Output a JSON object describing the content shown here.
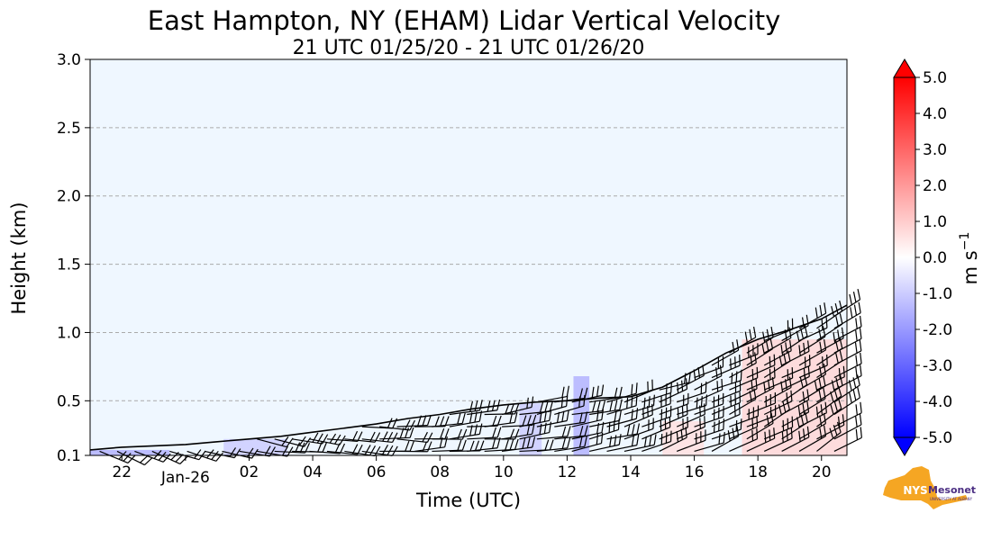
{
  "chart_data": {
    "type": "heatmap",
    "title": "East Hampton, NY (EHAM) Lidar Vertical Velocity",
    "subtitle": "21 UTC 01/25/20 - 21 UTC 01/26/20",
    "xlabel": "Time (UTC)",
    "ylabel": "Height (km)",
    "x_ticks": [
      "22",
      "Jan-26",
      "02",
      "04",
      "06",
      "08",
      "10",
      "12",
      "14",
      "16",
      "18",
      "20"
    ],
    "x_tick_hours": [
      22,
      24,
      26,
      28,
      30,
      32,
      34,
      36,
      38,
      40,
      42,
      44
    ],
    "xlim_hours": [
      21,
      44.8
    ],
    "y_ticks": [
      "0.1",
      "0.5",
      "1.0",
      "1.5",
      "2.0",
      "2.5",
      "3.0"
    ],
    "y_tick_values": [
      0.1,
      0.5,
      1.0,
      1.5,
      2.0,
      2.5,
      3.0
    ],
    "ylim": [
      0.1,
      3.0
    ],
    "grid": "horizontal dashed",
    "colorbar": {
      "label": "m s",
      "label_sup": "−1",
      "ticks": [
        "5.0",
        "4.0",
        "3.0",
        "2.0",
        "1.0",
        "0.0",
        "-1.0",
        "-2.0",
        "-3.0",
        "-4.0",
        "-5.0"
      ],
      "tick_values": [
        5,
        4,
        3,
        2,
        1,
        0,
        -1,
        -2,
        -3,
        -4,
        -5
      ],
      "range": [
        -5,
        5
      ],
      "colors": {
        "max": "#ff0000",
        "zero": "#ffffff",
        "min": "#0000ff"
      }
    },
    "data_top_height_km": [
      [
        21.0,
        0.14
      ],
      [
        22.0,
        0.16
      ],
      [
        23.0,
        0.17
      ],
      [
        24.0,
        0.18
      ],
      [
        25.0,
        0.2
      ],
      [
        26.0,
        0.22
      ],
      [
        27.0,
        0.24
      ],
      [
        28.0,
        0.27
      ],
      [
        29.0,
        0.3
      ],
      [
        30.0,
        0.33
      ],
      [
        31.0,
        0.37
      ],
      [
        32.0,
        0.4
      ],
      [
        33.0,
        0.44
      ],
      [
        34.0,
        0.47
      ],
      [
        35.0,
        0.49
      ],
      [
        36.0,
        0.5
      ],
      [
        37.0,
        0.52
      ],
      [
        38.0,
        0.53
      ],
      [
        39.0,
        0.6
      ],
      [
        40.0,
        0.72
      ],
      [
        41.0,
        0.85
      ],
      [
        42.0,
        0.95
      ],
      [
        43.0,
        1.02
      ],
      [
        44.0,
        1.1
      ],
      [
        44.8,
        1.2
      ]
    ],
    "velocity_regions": [
      {
        "start": 21.0,
        "end": 23.5,
        "max_height": 0.14,
        "value": -1.5
      },
      {
        "start": 25.2,
        "end": 27.2,
        "max_height": 0.22,
        "value": -1.0
      },
      {
        "start": 34.5,
        "end": 35.2,
        "max_height": 0.48,
        "value": -1.0
      },
      {
        "start": 36.2,
        "end": 36.7,
        "max_height": 0.68,
        "value": -1.5
      },
      {
        "start": 39.0,
        "end": 40.3,
        "max_height": 0.35,
        "value": 0.6
      },
      {
        "start": 41.5,
        "end": 44.8,
        "max_height": 0.95,
        "value": 0.8
      }
    ],
    "colors": {
      "background": "#eff7ff",
      "grid": "#aaaaaa",
      "barbs": "#000000"
    }
  },
  "logo": {
    "name": "NYS Mesonet",
    "text_main": "NYS",
    "text_side": "Mesonet",
    "text_sub": "UNIVERSITY AT ALBANY",
    "color": "#f5a623",
    "accent": "#4b2e83"
  }
}
